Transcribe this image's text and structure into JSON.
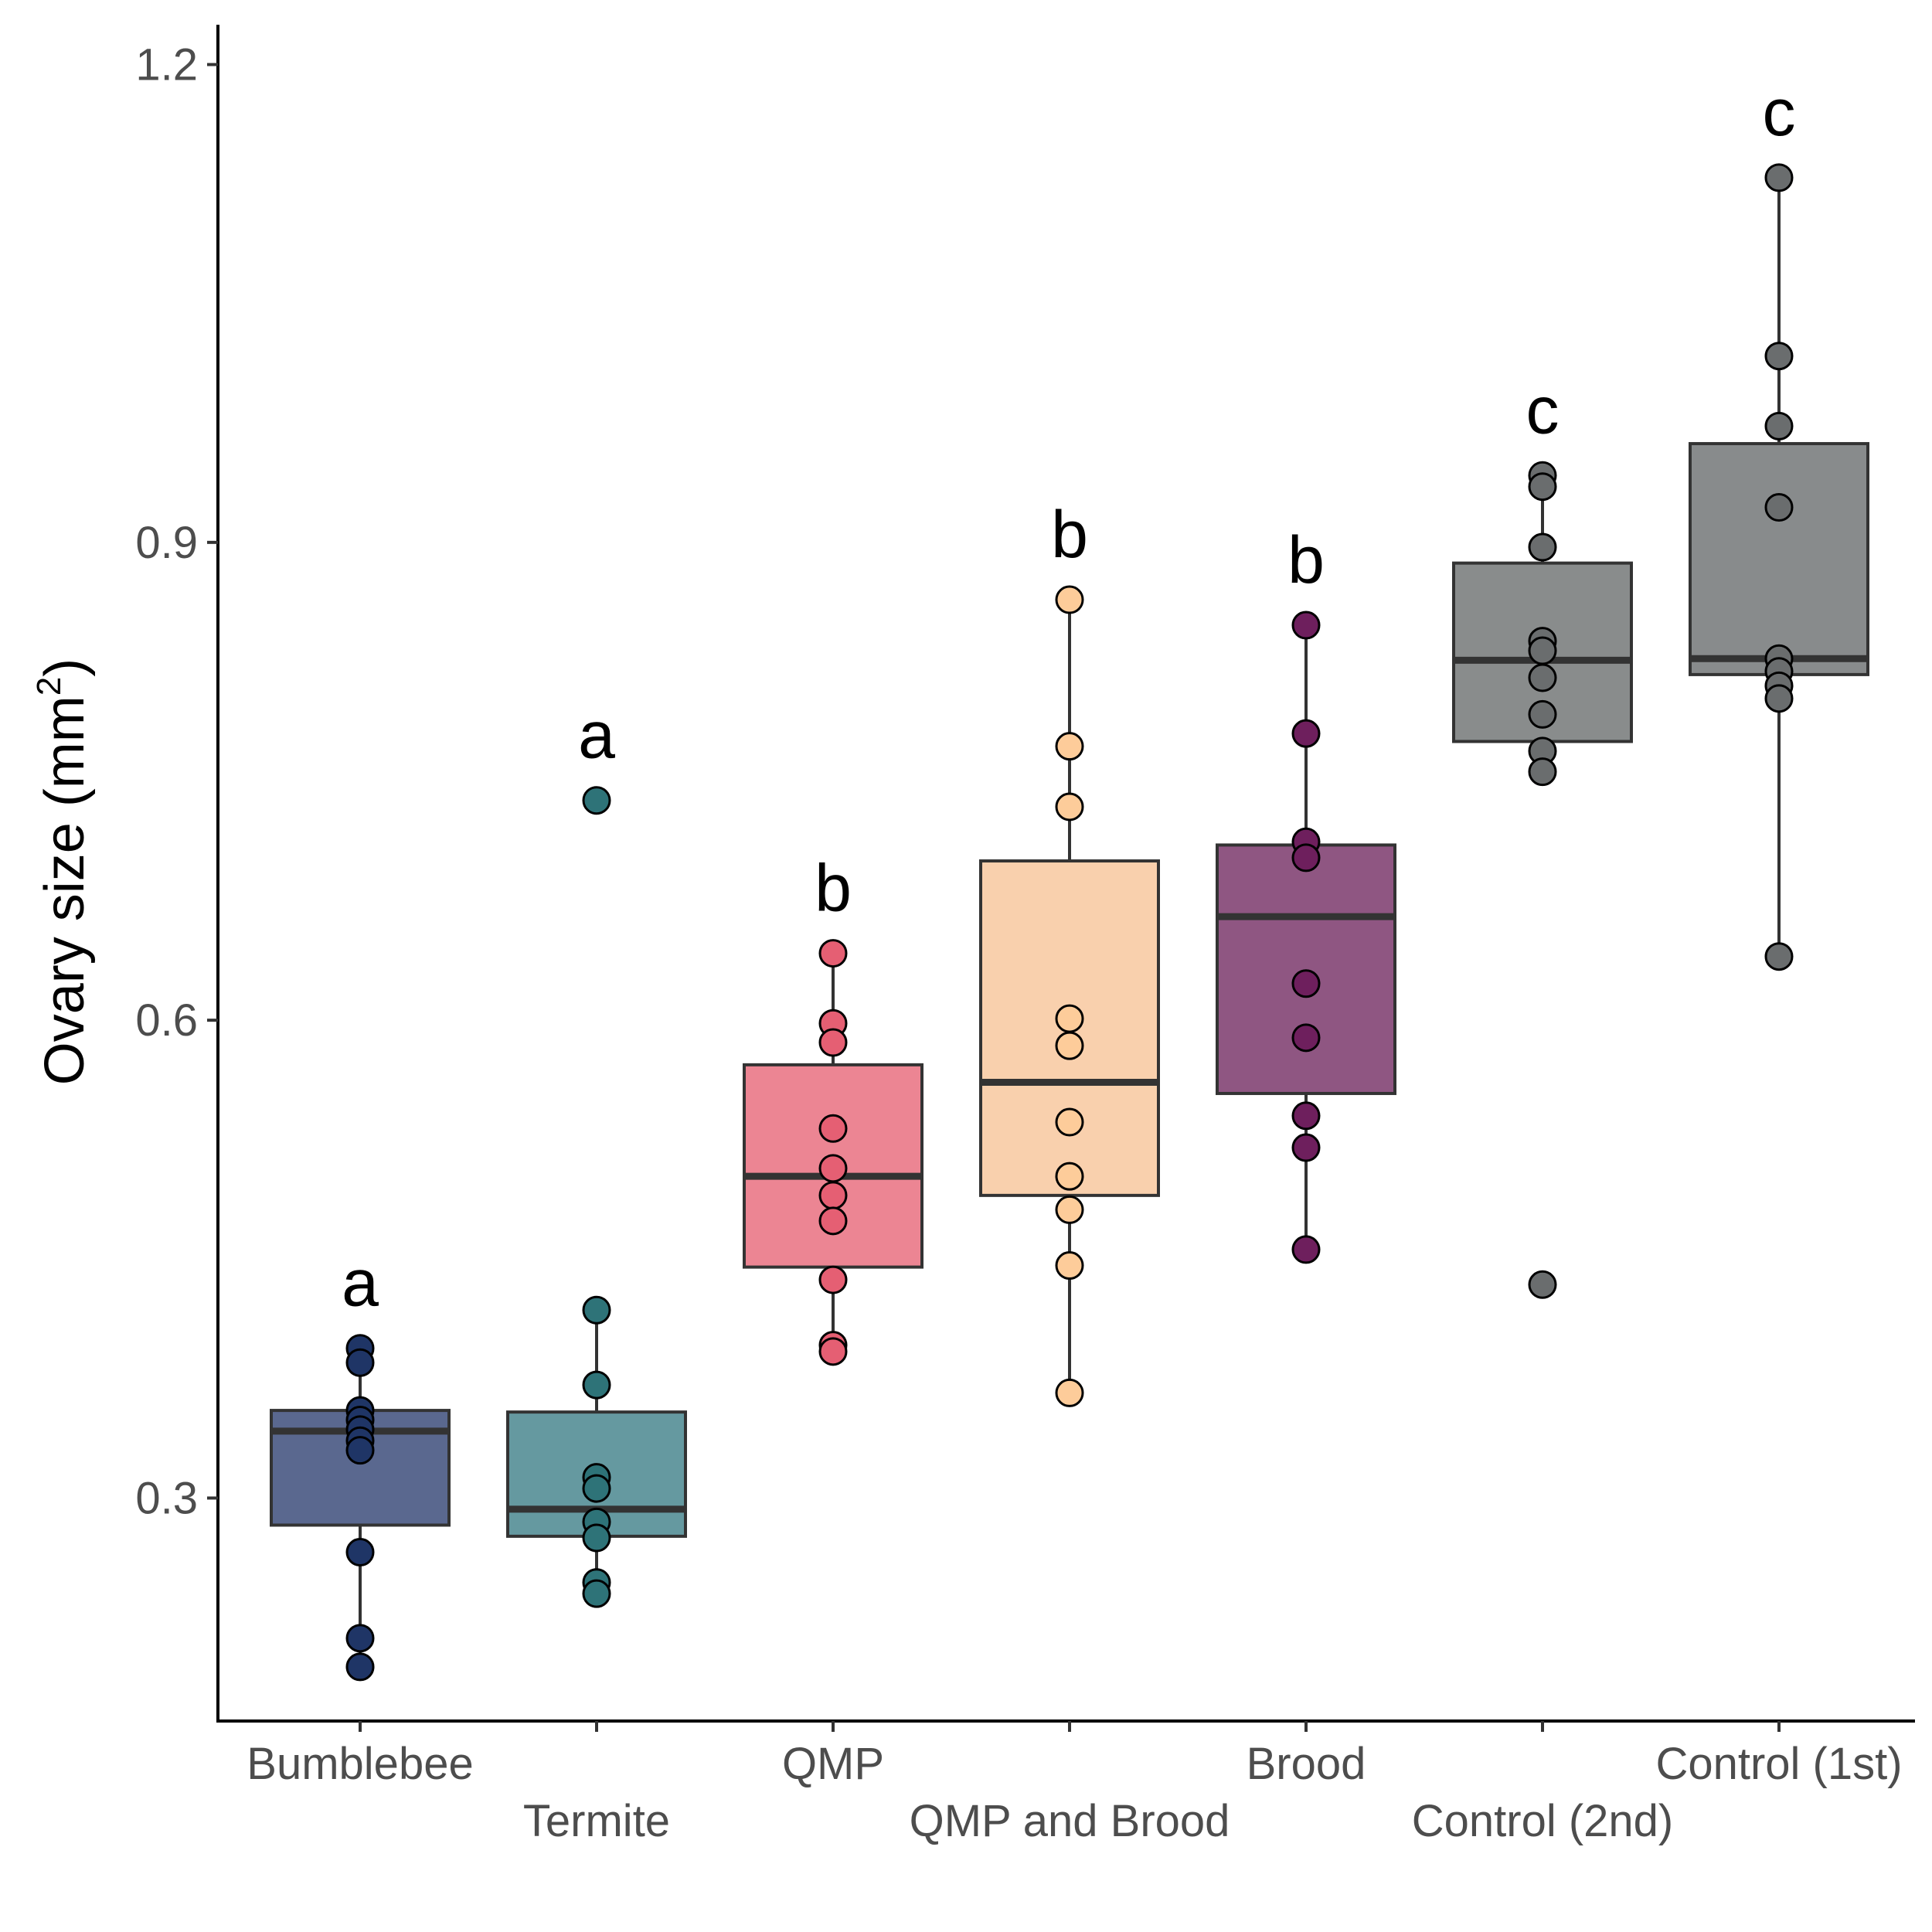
{
  "chart_data": {
    "type": "box",
    "ylabel": {
      "main": "Ovary size (mm",
      "sup": "2",
      "close": ")"
    },
    "xlabel": "",
    "ylim": [
      0.16,
      1.225
    ],
    "yticks": [
      "0.3",
      "0.6",
      "0.9",
      "1.2"
    ],
    "grid": false,
    "legend": "none",
    "groups": [
      {
        "label": "Bumblebee",
        "letter": "a",
        "color": "#5a688f",
        "point_color": "#1f3566",
        "q1": 0.283,
        "median": 0.342,
        "q3": 0.355,
        "whisker_low": 0.194,
        "whisker_high": 0.394,
        "points": [
          0.394,
          0.385,
          0.355,
          0.349,
          0.343,
          0.336,
          0.33,
          0.266,
          0.212,
          0.194
        ]
      },
      {
        "label": "Termite",
        "letter": "a",
        "color": "#6599a0",
        "point_color": "#2e7378",
        "q1": 0.276,
        "median": 0.293,
        "q3": 0.354,
        "whisker_low": 0.239,
        "whisker_high": 0.418,
        "points": [
          0.738,
          0.418,
          0.371,
          0.313,
          0.306,
          0.285,
          0.275,
          0.247,
          0.24
        ]
      },
      {
        "label": "QMP",
        "letter": "b",
        "color": "#ec8593",
        "point_color": "#e55f73",
        "q1": 0.445,
        "median": 0.502,
        "q3": 0.572,
        "whisker_low": 0.392,
        "whisker_high": 0.642,
        "points": [
          0.642,
          0.598,
          0.586,
          0.532,
          0.507,
          0.49,
          0.474,
          0.437,
          0.396,
          0.392
        ]
      },
      {
        "label": "QMP and Brood",
        "letter": "b",
        "color": "#f9d0ad",
        "point_color": "#fdcc9a",
        "q1": 0.49,
        "median": 0.561,
        "q3": 0.7,
        "whisker_low": 0.366,
        "whisker_high": 0.864,
        "points": [
          0.864,
          0.772,
          0.734,
          0.601,
          0.584,
          0.536,
          0.502,
          0.481,
          0.446,
          0.366
        ]
      },
      {
        "label": "Brood",
        "letter": "b",
        "color": "#8f5682",
        "point_color": "#6e1f5d",
        "q1": 0.554,
        "median": 0.665,
        "q3": 0.71,
        "whisker_low": 0.456,
        "whisker_high": 0.848,
        "points": [
          0.848,
          0.78,
          0.712,
          0.702,
          0.623,
          0.589,
          0.54,
          0.52,
          0.456
        ]
      },
      {
        "label": "Control (2nd)",
        "letter": "c",
        "color": "#898c8c",
        "point_color": "#6a6d6e",
        "q1": 0.775,
        "median": 0.826,
        "q3": 0.887,
        "whisker_low": 0.756,
        "whisker_high": 0.942,
        "points": [
          0.942,
          0.935,
          0.897,
          0.838,
          0.832,
          0.815,
          0.792,
          0.769,
          0.756,
          0.434
        ]
      },
      {
        "label": "Control (1st)",
        "letter": "c",
        "color": "#888b8c",
        "point_color": "#6a6d6e",
        "q1": 0.817,
        "median": 0.827,
        "q3": 0.962,
        "whisker_low": 0.64,
        "whisker_high": 1.129,
        "points": [
          1.129,
          1.017,
          0.973,
          0.922,
          0.827,
          0.819,
          0.81,
          0.802,
          0.64
        ]
      }
    ]
  }
}
